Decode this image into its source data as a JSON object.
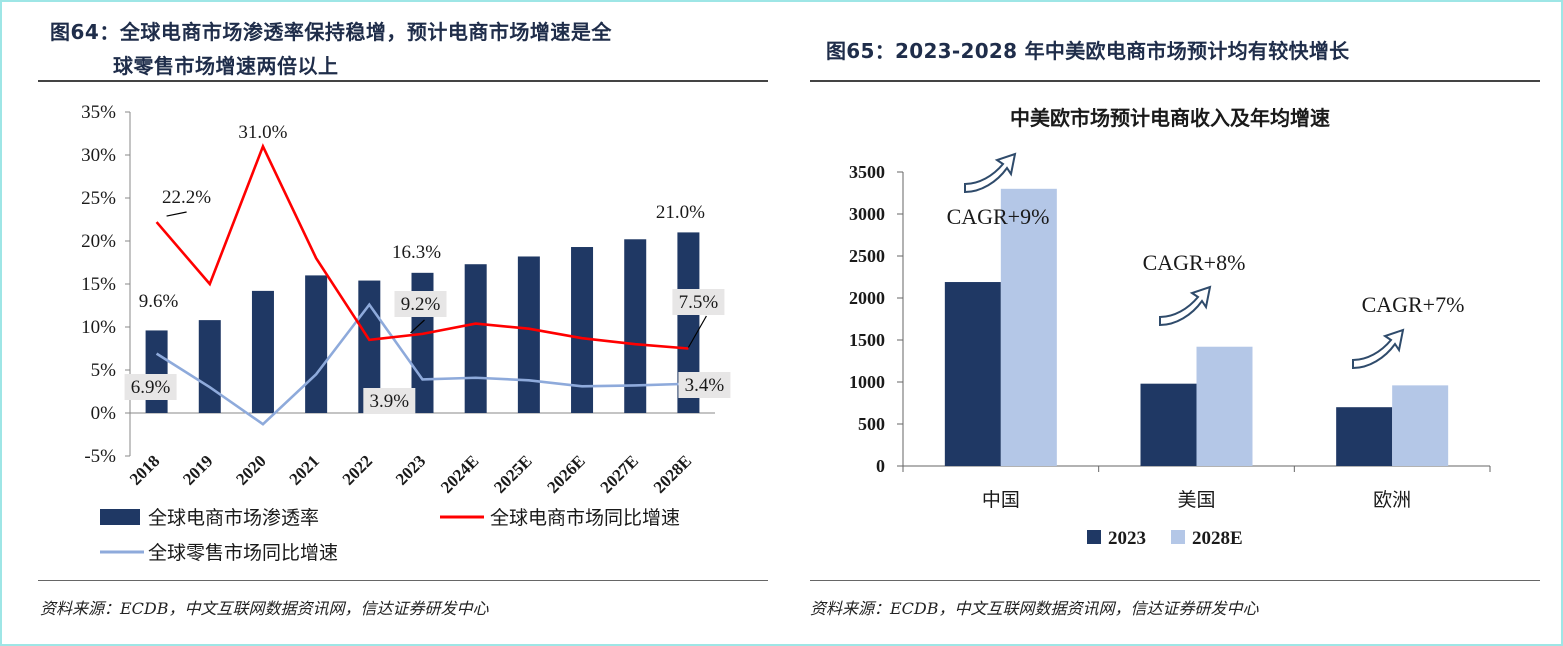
{
  "left_panel": {
    "title_line1": "图64：全球电商市场渗透率保持稳增，预计电商市场增速是全",
    "title_line2": "球零售市场增速两倍以上",
    "source": "资料来源：ECDB，中文互联网数据资讯网，信达证券研发中心"
  },
  "right_panel": {
    "title": "图65：2023-2028 年中美欧电商市场预计均有较快增长",
    "source": "资料来源：ECDB，中文互联网数据资讯网，信达证券研发中心"
  },
  "colors": {
    "navy": "#1f3864",
    "red": "#ff0000",
    "light_blue": "#8eaadb",
    "pale_blue": "#b4c7e7",
    "label_bg": "#e7e6e6"
  },
  "chart_data": [
    {
      "type": "bar",
      "title": "",
      "categories": [
        "2018",
        "2019",
        "2020",
        "2021",
        "2022",
        "2023",
        "2024E",
        "2025E",
        "2026E",
        "2027E",
        "2028E"
      ],
      "y_ticks": [
        "35%",
        "30%",
        "25%",
        "20%",
        "15%",
        "10%",
        "5%",
        "0%",
        "-5%"
      ],
      "ylim": [
        -5,
        35
      ],
      "series": [
        {
          "name": "全球电商市场渗透率",
          "kind": "bar",
          "values": [
            9.6,
            10.8,
            14.2,
            16.0,
            15.4,
            16.3,
            17.3,
            18.2,
            19.3,
            20.2,
            21.0
          ]
        },
        {
          "name": "全球电商市场同比增速",
          "kind": "line",
          "values": [
            22.2,
            15.0,
            31.0,
            18.0,
            8.5,
            9.2,
            10.4,
            9.8,
            8.7,
            8.0,
            7.5
          ]
        },
        {
          "name": "全球零售市场同比增速",
          "kind": "line",
          "values": [
            6.9,
            3.0,
            -1.3,
            4.5,
            12.6,
            3.9,
            4.1,
            3.8,
            3.1,
            3.2,
            3.4
          ]
        }
      ],
      "annotations": [
        {
          "text": "31.0%"
        },
        {
          "text": "22.2%"
        },
        {
          "text": "9.6%"
        },
        {
          "text": "6.9%"
        },
        {
          "text": "16.3%"
        },
        {
          "text": "9.2%"
        },
        {
          "text": "3.9%"
        },
        {
          "text": "21.0%"
        },
        {
          "text": "7.5%"
        },
        {
          "text": "3.4%"
        }
      ],
      "legend": [
        {
          "label": "全球电商市场渗透率",
          "kind": "bar"
        },
        {
          "label": "全球电商市场同比增速",
          "kind": "line-red"
        },
        {
          "label": "全球零售市场同比增速",
          "kind": "line-blue"
        }
      ]
    },
    {
      "type": "bar",
      "title": "中美欧市场预计电商收入及年均增速",
      "categories": [
        "中国",
        "美国",
        "欧洲"
      ],
      "y_ticks": [
        "3500",
        "3000",
        "2500",
        "2000",
        "1500",
        "1000",
        "500",
        "0"
      ],
      "ylim": [
        0,
        3500
      ],
      "series": [
        {
          "name": "2023",
          "values": [
            2190,
            980,
            700
          ]
        },
        {
          "name": "2028E",
          "values": [
            3300,
            1420,
            960
          ]
        }
      ],
      "annotations": [
        {
          "text": "CAGR+9%"
        },
        {
          "text": "CAGR+8%"
        },
        {
          "text": "CAGR+7%"
        }
      ]
    }
  ]
}
